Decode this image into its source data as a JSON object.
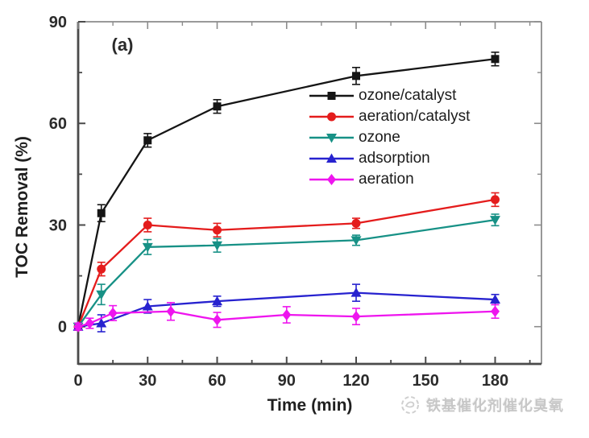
{
  "figure": {
    "panel_label": "(a)",
    "watermark_text": "铁基催化剂催化臭氧"
  },
  "axes": {
    "x_label": "Time (min)",
    "y_label": "TOC Removal (%)"
  },
  "colors": {
    "axis_main": "#4a4a4a",
    "axis_secondary": "#8c8c8c",
    "tick_label": "#2b2b2b",
    "watermark": "#c7c7c7"
  },
  "chart_data": {
    "type": "line",
    "title": "",
    "xlabel": "Time (min)",
    "ylabel": "TOC Removal (%)",
    "xlim": [
      0,
      200
    ],
    "ylim": [
      -11,
      90
    ],
    "x_ticks": [
      0,
      30,
      60,
      90,
      120,
      150,
      180
    ],
    "x_minor_ticks": [
      15,
      45,
      75,
      105,
      135,
      165,
      195
    ],
    "y_ticks": [
      0,
      30,
      60,
      90
    ],
    "y_minor_ticks": [
      15,
      45,
      75
    ],
    "grid": false,
    "legend_position": "inside-upper-right",
    "error_bars": true,
    "series": [
      {
        "name": "ozone/catalyst",
        "color": "#151515",
        "marker": "square",
        "x": [
          0,
          10,
          30,
          60,
          120,
          180
        ],
        "y": [
          0,
          33.5,
          55,
          65,
          74,
          79
        ],
        "yerr": [
          1,
          2.5,
          2,
          2,
          2.5,
          2
        ]
      },
      {
        "name": "aeration/catalyst",
        "color": "#e41c1c",
        "marker": "circle",
        "x": [
          0,
          10,
          30,
          60,
          120,
          180
        ],
        "y": [
          0,
          17,
          30,
          28.5,
          30.5,
          37.5
        ],
        "yerr": [
          1,
          2,
          2,
          2,
          1.5,
          2
        ]
      },
      {
        "name": "ozone",
        "color": "#179186",
        "marker": "triangle-down",
        "x": [
          0,
          10,
          30,
          60,
          120,
          180
        ],
        "y": [
          0,
          9.5,
          23.5,
          24,
          25.5,
          31.5
        ],
        "yerr": [
          1,
          3,
          2.2,
          2,
          1.5,
          1.7
        ]
      },
      {
        "name": "adsorption",
        "color": "#2722cf",
        "marker": "triangle-up",
        "x": [
          0,
          10,
          30,
          60,
          120,
          180
        ],
        "y": [
          0,
          1,
          6,
          7.5,
          10,
          8
        ],
        "yerr": [
          1,
          2.5,
          2,
          1.5,
          2.5,
          1.5
        ]
      },
      {
        "name": "aeration",
        "color": "#ee15ee",
        "marker": "diamond",
        "x": [
          0,
          5,
          15,
          40,
          60,
          90,
          120,
          180
        ],
        "y": [
          0,
          1,
          4,
          4.5,
          2,
          3.5,
          3,
          4.5
        ],
        "yerr": [
          1,
          1.5,
          2.2,
          2.6,
          2.2,
          2.4,
          2.4,
          2
        ]
      }
    ]
  }
}
